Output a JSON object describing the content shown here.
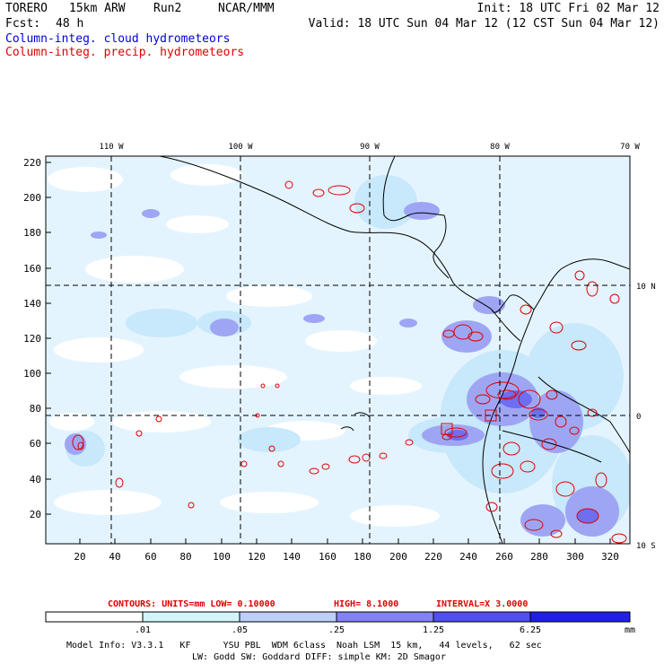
{
  "header": {
    "model_name": "TORERO",
    "resolution": "15km ARW",
    "run": "Run2",
    "institution": "NCAR/MMM",
    "init": "Init: 18 UTC Fri 02 Mar 12",
    "fcst_label": "Fcst:",
    "fcst_value": "48 h",
    "valid": "Valid: 18 UTC Sun 04 Mar 12 (12 CST Sun 04 Mar 12)",
    "field1": "Column-integ. cloud hydrometeors",
    "field2": "Column-integ. precip. hydrometeors"
  },
  "map": {
    "lon_labels": [
      "110 W",
      "100 W",
      "90 W",
      "80 W",
      "70 W"
    ],
    "lat_labels": [
      "10 N",
      "0",
      "10 S"
    ],
    "y_ticks": [
      "220",
      "200",
      "180",
      "160",
      "140",
      "120",
      "100",
      "80",
      "60",
      "40",
      "20"
    ],
    "x_ticks": [
      "20",
      "40",
      "60",
      "80",
      "100",
      "120",
      "140",
      "160",
      "180",
      "200",
      "220",
      "240",
      "260",
      "280",
      "300",
      "320"
    ],
    "x_range": [
      0,
      330
    ],
    "y_range": [
      0,
      225
    ],
    "colors": {
      "land_line": "#000000",
      "precip_contour": "#e00000",
      "fill_1": "#e4f4ff",
      "fill_2": "#c8e8fb",
      "fill_3": "#9ea6f4",
      "fill_4": "#6e6ef0"
    }
  },
  "contour_info": {
    "units_text": "CONTOURS:  UNITS=mm  LOW= 0.10000",
    "high_text": "HIGH=  8.1000",
    "interval_text": "INTERVAL=X  3.0000"
  },
  "colorbar": {
    "labels": [
      ".01",
      ".05",
      ".25",
      "1.25",
      "6.25"
    ],
    "unit": "mm",
    "colors": [
      "#ffffff",
      "#d2f4fb",
      "#bccff8",
      "#8282f6",
      "#4f4ff2",
      "#2020e8"
    ]
  },
  "footer": {
    "line1": "Model Info: V3.3.1   KF      YSU PBL  WDM 6class  Noah LSM  15 km,   44 levels,   62 sec",
    "line2": "LW: Godd SW: Goddard DIFF: simple KM: 2D Smagor"
  }
}
